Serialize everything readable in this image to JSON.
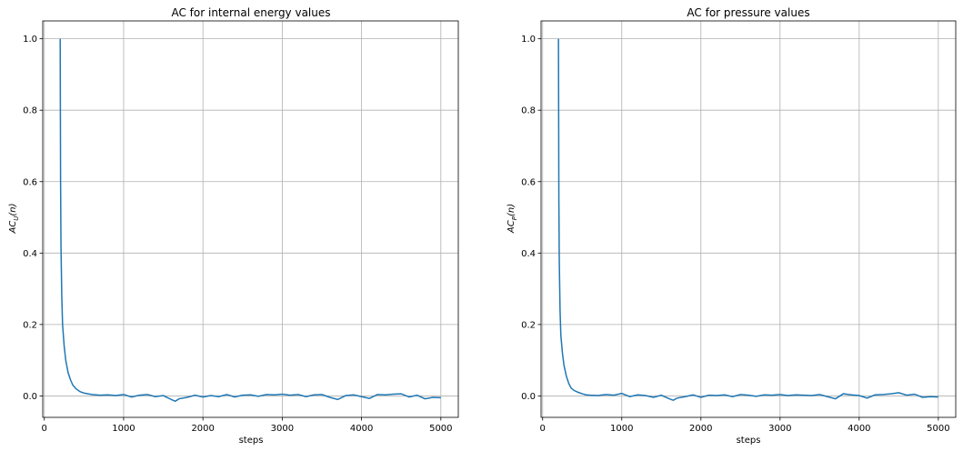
{
  "colors": {
    "line": "#1f77b4",
    "grid": "#b0b0b0",
    "frame": "#000000"
  },
  "chart_data": [
    {
      "type": "line",
      "title": "AC for internal energy values",
      "xlabel": "steps",
      "ylabel": "AC_U(n)",
      "ylabel_main": "AC",
      "ylabel_sub": "U",
      "ylabel_rest": "(n)",
      "xlim": [
        -20,
        5220
      ],
      "ylim": [
        -0.06,
        1.05
      ],
      "grid": true,
      "xticks": [
        0,
        1000,
        2000,
        3000,
        4000,
        5000
      ],
      "xtick_labels": [
        "0",
        "1000",
        "2000",
        "3000",
        "4000",
        "5000"
      ],
      "yticks": [
        0.0,
        0.2,
        0.4,
        0.6,
        0.8,
        1.0
      ],
      "ytick_labels": [
        "0.0",
        "0.2",
        "0.4",
        "0.6",
        "0.8",
        "1.0"
      ],
      "series": [
        {
          "x": [
            200,
            205,
            210,
            220,
            230,
            250,
            270,
            300,
            330,
            360,
            400,
            450,
            500,
            550,
            600,
            700,
            800,
            900,
            1000,
            1100,
            1200,
            1300,
            1400,
            1500,
            1600,
            1650,
            1700,
            1800,
            1900,
            2000,
            2100,
            2200,
            2300,
            2400,
            2500,
            2600,
            2700,
            2800,
            2900,
            3000,
            3100,
            3200,
            3300,
            3400,
            3500,
            3600,
            3700,
            3800,
            3900,
            4000,
            4100,
            4200,
            4300,
            4400,
            4500,
            4600,
            4700,
            4800,
            4900,
            5000
          ],
          "values": [
            1.0,
            0.6,
            0.42,
            0.28,
            0.2,
            0.14,
            0.1,
            0.065,
            0.045,
            0.03,
            0.02,
            0.012,
            0.008,
            0.006,
            0.004,
            0.002,
            0.003,
            0.001,
            0.004,
            -0.003,
            0.002,
            0.004,
            -0.002,
            0.001,
            -0.01,
            -0.015,
            -0.008,
            -0.004,
            0.002,
            -0.003,
            0.001,
            -0.002,
            0.004,
            -0.003,
            0.002,
            0.003,
            -0.001,
            0.004,
            0.003,
            0.005,
            0.002,
            0.004,
            -0.002,
            0.003,
            0.004,
            -0.004,
            -0.01,
            0.001,
            0.003,
            -0.002,
            -0.007,
            0.004,
            0.003,
            0.005,
            0.006,
            -0.003,
            0.002,
            -0.008,
            -0.004,
            -0.005
          ]
        }
      ]
    },
    {
      "type": "line",
      "title": "AC for pressure values",
      "xlabel": "steps",
      "ylabel": "AC_P(n)",
      "ylabel_main": "AC",
      "ylabel_sub": "P",
      "ylabel_rest": "(n)",
      "xlim": [
        -20,
        5220
      ],
      "ylim": [
        -0.06,
        1.05
      ],
      "grid": true,
      "xticks": [
        0,
        1000,
        2000,
        3000,
        4000,
        5000
      ],
      "xtick_labels": [
        "0",
        "1000",
        "2000",
        "3000",
        "4000",
        "5000"
      ],
      "yticks": [
        0.0,
        0.2,
        0.4,
        0.6,
        0.8,
        1.0
      ],
      "ytick_labels": [
        "0.0",
        "0.2",
        "0.4",
        "0.6",
        "0.8",
        "1.0"
      ],
      "series": [
        {
          "x": [
            200,
            205,
            210,
            220,
            230,
            250,
            270,
            300,
            330,
            360,
            400,
            450,
            500,
            550,
            600,
            700,
            800,
            900,
            1000,
            1100,
            1200,
            1300,
            1400,
            1500,
            1600,
            1650,
            1700,
            1800,
            1900,
            2000,
            2100,
            2200,
            2300,
            2400,
            2500,
            2600,
            2700,
            2800,
            2900,
            3000,
            3100,
            3200,
            3300,
            3400,
            3500,
            3600,
            3700,
            3800,
            3900,
            4000,
            4100,
            4200,
            4300,
            4400,
            4500,
            4600,
            4700,
            4800,
            4900,
            5000
          ],
          "values": [
            1.0,
            0.55,
            0.38,
            0.24,
            0.17,
            0.12,
            0.085,
            0.055,
            0.035,
            0.022,
            0.015,
            0.01,
            0.006,
            0.003,
            0.002,
            0.001,
            0.004,
            0.002,
            0.007,
            -0.002,
            0.003,
            0.001,
            -0.004,
            0.002,
            -0.008,
            -0.012,
            -0.006,
            -0.002,
            0.003,
            -0.004,
            0.002,
            0.001,
            0.003,
            -0.002,
            0.004,
            0.002,
            -0.001,
            0.003,
            0.002,
            0.004,
            0.001,
            0.003,
            0.002,
            0.001,
            0.004,
            -0.002,
            -0.008,
            0.006,
            0.003,
            0.001,
            -0.006,
            0.003,
            0.004,
            0.006,
            0.009,
            0.002,
            0.005,
            -0.004,
            -0.002,
            -0.003
          ]
        }
      ]
    }
  ]
}
